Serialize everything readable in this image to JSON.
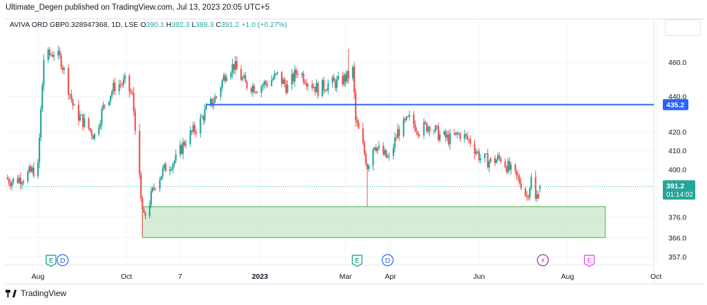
{
  "header": {
    "published": "Ultimate_Degen published on TradingView.com, Jul 13, 2023 20:05 UTC+5"
  },
  "symbol": {
    "name": "AVIVA ORD GBP0.328947368, 1D, LSE",
    "o_label": "O",
    "o_value": "390.1",
    "h_label": "H",
    "h_value": "392.3",
    "l_label": "L",
    "l_value": "388.3",
    "c_label": "C",
    "c_value": "391.2",
    "change": "+1.0 (+0.27%)"
  },
  "footer": {
    "brand": "TradingView"
  },
  "colors": {
    "up": "#26a69a",
    "down": "#ef5350",
    "line": "#2962ff",
    "zone_fill": "#c8e6c9",
    "zone_border": "#4caf50"
  },
  "chart_data": {
    "type": "candlestick",
    "price_scale": "log",
    "y_ticks": [
      "460.0",
      "440.0",
      "420.0",
      "410.0",
      "400.0",
      "376.0",
      "366.0",
      "357.0"
    ],
    "x_ticks": [
      "Aug",
      "Oct",
      "7",
      "2023",
      "Mar",
      "Apr",
      "Jun",
      "Aug",
      "Oct"
    ],
    "price_label": {
      "value": "391.2",
      "countdown": "01:14:02"
    },
    "horizontal_line": {
      "price": 435.2,
      "label": "435.2",
      "from": "2022-11-25"
    },
    "zone": {
      "top": 381,
      "bottom": 366,
      "from": "2022-10-12",
      "to": "2023-08-27"
    },
    "events": [
      {
        "label": "E",
        "type": "earnings",
        "date": "2022-08-10"
      },
      {
        "label": "D",
        "type": "dividend",
        "date": "2022-08-18"
      },
      {
        "label": "E",
        "type": "earnings",
        "date": "2023-03-09"
      },
      {
        "label": "D",
        "type": "dividend",
        "date": "2023-03-30"
      },
      {
        "label": "⚡",
        "type": "split",
        "date": "2023-07-15"
      },
      {
        "label": "E",
        "type": "earnings-upcoming",
        "date": "2023-08-16"
      }
    ],
    "ohlc_last": {
      "open": 390.1,
      "high": 392.3,
      "low": 388.3,
      "close": 391.2
    },
    "path": [
      [
        "2022-07-01",
        398
      ],
      [
        "2022-07-14",
        394
      ],
      [
        "2022-07-22",
        396
      ],
      [
        "2022-08-01",
        401
      ],
      [
        "2022-08-05",
        462
      ],
      [
        "2022-08-12",
        466
      ],
      [
        "2022-08-17",
        461
      ],
      [
        "2022-08-26",
        432
      ],
      [
        "2022-09-02",
        425
      ],
      [
        "2022-09-09",
        418
      ],
      [
        "2022-09-16",
        436
      ],
      [
        "2022-09-23",
        446
      ],
      [
        "2022-09-30",
        448
      ],
      [
        "2022-10-05",
        440
      ],
      [
        "2022-10-07",
        424
      ],
      [
        "2022-10-11",
        384
      ],
      [
        "2022-10-13",
        375
      ],
      [
        "2022-10-18",
        386
      ],
      [
        "2022-10-21",
        393
      ],
      [
        "2022-10-28",
        401
      ],
      [
        "2022-11-04",
        405
      ],
      [
        "2022-11-11",
        416
      ],
      [
        "2022-11-18",
        422
      ],
      [
        "2022-11-25",
        432
      ],
      [
        "2022-12-02",
        440
      ],
      [
        "2022-12-09",
        455
      ],
      [
        "2022-12-14",
        458
      ],
      [
        "2022-12-22",
        447
      ],
      [
        "2022-12-30",
        445
      ],
      [
        "2023-01-06",
        448
      ],
      [
        "2023-01-13",
        452
      ],
      [
        "2023-01-20",
        445
      ],
      [
        "2023-01-27",
        455
      ],
      [
        "2023-02-03",
        449
      ],
      [
        "2023-02-10",
        444
      ],
      [
        "2023-02-17",
        447
      ],
      [
        "2023-02-24",
        448
      ],
      [
        "2023-03-02",
        451
      ],
      [
        "2023-03-06",
        455
      ],
      [
        "2023-03-08",
        426
      ],
      [
        "2023-03-13",
        412
      ],
      [
        "2023-03-16",
        402
      ],
      [
        "2023-03-21",
        414
      ],
      [
        "2023-03-24",
        410
      ],
      [
        "2023-03-31",
        405
      ],
      [
        "2023-04-06",
        420
      ],
      [
        "2023-04-14",
        427
      ],
      [
        "2023-04-21",
        421
      ],
      [
        "2023-04-28",
        424
      ],
      [
        "2023-05-05",
        418
      ],
      [
        "2023-05-12",
        416
      ],
      [
        "2023-05-19",
        419
      ],
      [
        "2023-05-26",
        415
      ],
      [
        "2023-06-02",
        406
      ],
      [
        "2023-06-09",
        404
      ],
      [
        "2023-06-16",
        406
      ],
      [
        "2023-06-23",
        399
      ],
      [
        "2023-06-30",
        393
      ],
      [
        "2023-07-04",
        386
      ],
      [
        "2023-07-07",
        395
      ],
      [
        "2023-07-10",
        384
      ],
      [
        "2023-07-13",
        391
      ]
    ]
  }
}
